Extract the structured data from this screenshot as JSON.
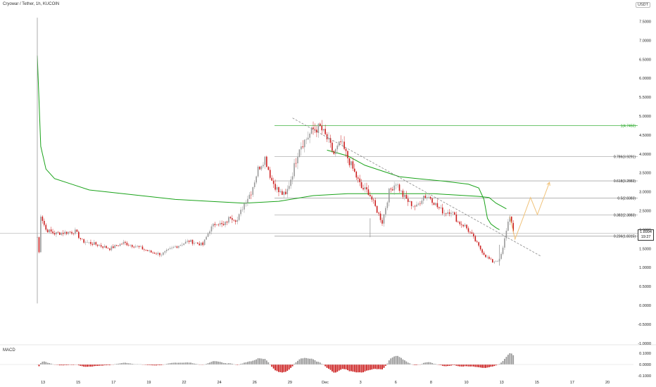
{
  "header": {
    "title": "Cryowar / Tether, 1h, KUCOIN",
    "currency": "USDT"
  },
  "price_tag": {
    "value": "1.8994",
    "time": "19:27"
  },
  "colors": {
    "up": "#999999",
    "down": "#cc1f1f",
    "fib": "#888888",
    "ma": "#1aa31a",
    "trendline": "#888888",
    "projection": "#f0c27a",
    "text": "#222222",
    "fib1_text": "#1aa31a"
  },
  "chart_data": [
    {
      "type": "candlestick",
      "title": "Cryowar / Tether, 1h, KUCOIN",
      "x_tick_labels": [
        "13",
        "15",
        "17",
        "19",
        "22",
        "24",
        "26",
        "29",
        "Dec",
        "3",
        "6",
        "8",
        "10",
        "13",
        "15",
        "17",
        "20"
      ],
      "y_ticks": [
        "7.5000",
        "7.0000",
        "6.5000",
        "6.0000",
        "5.5000",
        "5.0000",
        "4.5000",
        "4.0000",
        "3.5000",
        "3.0000",
        "2.5000",
        "2.0000",
        "1.5000",
        "1.0000",
        "0.5000",
        "0.0000",
        "-0.5000",
        "-1.0000"
      ],
      "ylim": [
        -1.0,
        7.6
      ],
      "fib_levels": [
        {
          "label": "1(4.7450)",
          "value": 4.745
        },
        {
          "label": "0.786(3.9291)",
          "value": 3.9291
        },
        {
          "label": "0.618(3.2883)",
          "value": 3.2883
        },
        {
          "label": "0.5(2.8383)",
          "value": 2.8383
        },
        {
          "label": "0.382(2.3883)",
          "value": 2.3883
        },
        {
          "label": "0.236(1.8315)",
          "value": 1.8315
        }
      ],
      "last_price": 1.8994,
      "keypoints": [
        [
          0,
          1.8
        ],
        [
          1,
          1.4
        ],
        [
          2,
          2.4
        ],
        [
          5,
          2.0
        ],
        [
          10,
          1.9
        ],
        [
          22,
          1.95
        ],
        [
          26,
          1.7
        ],
        [
          35,
          1.6
        ],
        [
          42,
          1.5
        ],
        [
          50,
          1.65
        ],
        [
          58,
          1.55
        ],
        [
          66,
          1.4
        ],
        [
          72,
          1.35
        ],
        [
          80,
          1.55
        ],
        [
          88,
          1.7
        ],
        [
          96,
          1.6
        ],
        [
          100,
          2.0
        ],
        [
          104,
          2.2
        ],
        [
          108,
          2.1
        ],
        [
          112,
          2.35
        ],
        [
          116,
          2.25
        ],
        [
          120,
          2.7
        ],
        [
          124,
          3.0
        ],
        [
          128,
          3.6
        ],
        [
          132,
          3.9
        ],
        [
          136,
          3.3
        ],
        [
          140,
          3.0
        ],
        [
          144,
          2.9
        ],
        [
          148,
          3.5
        ],
        [
          152,
          4.2
        ],
        [
          156,
          4.4
        ],
        [
          160,
          4.65
        ],
        [
          164,
          4.7
        ],
        [
          168,
          4.4
        ],
        [
          172,
          4.0
        ],
        [
          176,
          4.3
        ],
        [
          180,
          3.9
        ],
        [
          184,
          3.5
        ],
        [
          188,
          3.1
        ],
        [
          192,
          3.0
        ],
        [
          196,
          2.6
        ],
        [
          198,
          2.4
        ],
        [
          200,
          2.2
        ],
        [
          204,
          3.0
        ],
        [
          208,
          3.25
        ],
        [
          212,
          2.9
        ],
        [
          216,
          2.7
        ],
        [
          220,
          2.6
        ],
        [
          224,
          2.9
        ],
        [
          228,
          2.85
        ],
        [
          232,
          2.6
        ],
        [
          236,
          2.45
        ],
        [
          240,
          2.5
        ],
        [
          244,
          2.2
        ],
        [
          248,
          2.1
        ],
        [
          252,
          1.85
        ],
        [
          256,
          1.55
        ],
        [
          260,
          1.3
        ],
        [
          264,
          1.15
        ],
        [
          268,
          1.2
        ],
        [
          270,
          1.5
        ],
        [
          272,
          2.0
        ],
        [
          274,
          2.4
        ],
        [
          276,
          1.9
        ]
      ],
      "volume_spikes": [
        [
          0,
          7.6,
          0.05
        ],
        [
          193,
          2.3,
          1.8
        ],
        [
          268,
          1.6,
          1.05
        ]
      ],
      "ma_line": [
        [
          0,
          6.6
        ],
        [
          2,
          4.2
        ],
        [
          5,
          3.6
        ],
        [
          10,
          3.35
        ],
        [
          20,
          3.2
        ],
        [
          30,
          3.05
        ],
        [
          40,
          3.0
        ],
        [
          60,
          2.9
        ],
        [
          80,
          2.8
        ],
        [
          100,
          2.75
        ],
        [
          120,
          2.7
        ],
        [
          140,
          2.75
        ],
        [
          160,
          2.9
        ],
        [
          180,
          2.95
        ],
        [
          200,
          2.95
        ],
        [
          230,
          2.95
        ],
        [
          256,
          2.88
        ],
        [
          262,
          2.85
        ],
        [
          266,
          2.7
        ],
        [
          270,
          2.6
        ],
        [
          272,
          2.55
        ]
      ],
      "ma2_line": [
        [
          168,
          4.1
        ],
        [
          180,
          3.95
        ],
        [
          190,
          3.7
        ],
        [
          200,
          3.55
        ],
        [
          210,
          3.4
        ],
        [
          220,
          3.35
        ],
        [
          236,
          3.28
        ],
        [
          250,
          3.2
        ],
        [
          256,
          3.1
        ],
        [
          259,
          2.8
        ],
        [
          261,
          2.3
        ],
        [
          263,
          2.15
        ],
        [
          266,
          2.05
        ],
        [
          268,
          2.0
        ]
      ],
      "trendline": [
        [
          148,
          4.95
        ],
        [
          292,
          1.3
        ]
      ],
      "projection": [
        [
          274,
          2.35
        ],
        [
          277,
          1.75
        ],
        [
          282,
          2.35
        ],
        [
          286,
          2.85
        ],
        [
          290,
          2.4
        ],
        [
          297,
          3.25
        ]
      ],
      "projection_end_x": 297
    },
    {
      "type": "bar",
      "title": "MACD",
      "y_ticks": [
        "0.1000",
        "0.0000",
        "-0.1000"
      ],
      "ylim": [
        -0.12,
        0.12
      ]
    }
  ]
}
